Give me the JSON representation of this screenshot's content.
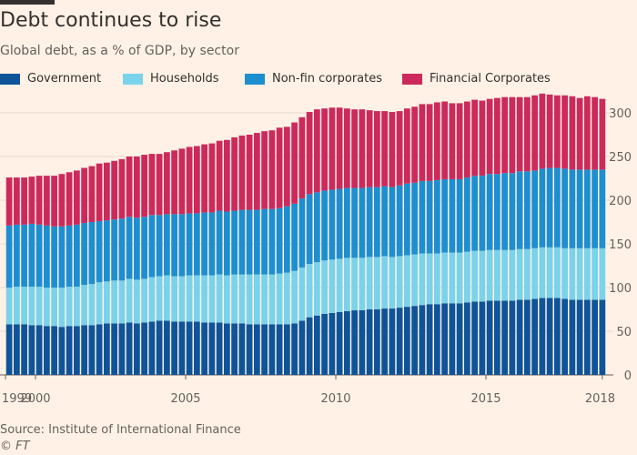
{
  "header": {
    "title": "Debt continues to rise",
    "subtitle": "Global debt, as a % of GDP, by sector"
  },
  "legend": [
    {
      "label": "Government",
      "color": "#0f5499"
    },
    {
      "label": "Households",
      "color": "#7ad3ea"
    },
    {
      "label": "Non-fin corporates",
      "color": "#1d8fd0"
    },
    {
      "label": "Financial Corporates",
      "color": "#cc2a5c"
    }
  ],
  "footer": {
    "source": "Source: Institute of International Finance",
    "credit": "© FT"
  },
  "chart_data": {
    "type": "bar",
    "stacked": true,
    "title": "Debt continues to rise",
    "subtitle": "Global debt, as a % of GDP, by sector",
    "ylim": [
      0,
      325
    ],
    "yticks": [
      0,
      50,
      100,
      150,
      200,
      250,
      300
    ],
    "x_tick_labels": [
      "1999",
      "2000",
      "2005",
      "2010",
      "2015",
      "2018"
    ],
    "grid": true,
    "legend_position": "top",
    "categories": [
      "1999 Q1",
      "1999 Q2",
      "1999 Q3",
      "1999 Q4",
      "2000 Q1",
      "2000 Q2",
      "2000 Q3",
      "2000 Q4",
      "2001 Q1",
      "2001 Q2",
      "2001 Q3",
      "2001 Q4",
      "2002 Q1",
      "2002 Q2",
      "2002 Q3",
      "2002 Q4",
      "2003 Q1",
      "2003 Q2",
      "2003 Q3",
      "2003 Q4",
      "2004 Q1",
      "2004 Q2",
      "2004 Q3",
      "2004 Q4",
      "2005 Q1",
      "2005 Q2",
      "2005 Q3",
      "2005 Q4",
      "2006 Q1",
      "2006 Q2",
      "2006 Q3",
      "2006 Q4",
      "2007 Q1",
      "2007 Q2",
      "2007 Q3",
      "2007 Q4",
      "2008 Q1",
      "2008 Q2",
      "2008 Q3",
      "2008 Q4",
      "2009 Q1",
      "2009 Q2",
      "2009 Q3",
      "2009 Q4",
      "2010 Q1",
      "2010 Q2",
      "2010 Q3",
      "2010 Q4",
      "2011 Q1",
      "2011 Q2",
      "2011 Q3",
      "2011 Q4",
      "2012 Q1",
      "2012 Q2",
      "2012 Q3",
      "2012 Q4",
      "2013 Q1",
      "2013 Q2",
      "2013 Q3",
      "2013 Q4",
      "2014 Q1",
      "2014 Q2",
      "2014 Q3",
      "2014 Q4",
      "2015 Q1",
      "2015 Q2",
      "2015 Q3",
      "2015 Q4",
      "2016 Q1",
      "2016 Q2",
      "2016 Q3",
      "2016 Q4",
      "2017 Q1",
      "2017 Q2",
      "2017 Q3",
      "2017 Q4",
      "2018 Q1",
      "2018 Q2",
      "2018 Q3",
      "2018 Q4"
    ],
    "series": [
      {
        "name": "Government",
        "color": "#0f5499",
        "values": [
          58,
          58,
          58,
          57,
          57,
          56,
          56,
          55,
          56,
          56,
          57,
          57,
          58,
          59,
          59,
          59,
          60,
          59,
          60,
          61,
          62,
          62,
          61,
          61,
          61,
          61,
          60,
          60,
          60,
          59,
          59,
          59,
          58,
          58,
          58,
          58,
          58,
          58,
          59,
          62,
          66,
          68,
          70,
          71,
          72,
          73,
          74,
          74,
          75,
          75,
          76,
          76,
          77,
          78,
          79,
          80,
          81,
          81,
          82,
          82,
          82,
          83,
          84,
          84,
          85,
          85,
          85,
          85,
          86,
          86,
          87,
          88,
          88,
          88,
          87,
          86,
          86,
          86,
          86,
          86
        ]
      },
      {
        "name": "Households",
        "color": "#7ad3ea",
        "values": [
          42,
          43,
          43,
          44,
          44,
          44,
          44,
          45,
          45,
          45,
          46,
          47,
          48,
          48,
          49,
          49,
          50,
          50,
          50,
          51,
          51,
          52,
          52,
          52,
          53,
          53,
          54,
          54,
          55,
          55,
          56,
          56,
          57,
          57,
          57,
          57,
          58,
          59,
          60,
          61,
          61,
          61,
          61,
          61,
          61,
          61,
          60,
          60,
          60,
          60,
          60,
          59,
          59,
          59,
          59,
          59,
          58,
          58,
          58,
          58,
          58,
          58,
          58,
          58,
          58,
          58,
          58,
          58,
          58,
          58,
          58,
          58,
          58,
          58,
          58,
          59,
          59,
          59,
          59,
          59
        ]
      },
      {
        "name": "Non-fin corporates",
        "color": "#1d8fd0",
        "values": [
          71,
          71,
          71,
          72,
          71,
          71,
          70,
          70,
          70,
          71,
          71,
          71,
          70,
          70,
          70,
          71,
          71,
          71,
          71,
          71,
          70,
          70,
          71,
          71,
          71,
          71,
          72,
          72,
          73,
          73,
          73,
          74,
          74,
          74,
          75,
          75,
          75,
          76,
          77,
          79,
          80,
          80,
          80,
          80,
          80,
          80,
          80,
          80,
          80,
          80,
          80,
          80,
          81,
          82,
          82,
          83,
          83,
          84,
          84,
          84,
          84,
          85,
          86,
          86,
          87,
          87,
          88,
          88,
          89,
          89,
          89,
          90,
          91,
          91,
          91,
          90,
          90,
          90,
          90,
          90
        ]
      },
      {
        "name": "Financial Corporates",
        "color": "#cc2a5c",
        "values": [
          55,
          54,
          54,
          54,
          56,
          57,
          58,
          60,
          61,
          62,
          63,
          64,
          66,
          66,
          67,
          68,
          69,
          70,
          71,
          70,
          70,
          71,
          73,
          75,
          76,
          77,
          78,
          79,
          80,
          82,
          84,
          85,
          86,
          88,
          89,
          90,
          92,
          91,
          93,
          93,
          94,
          95,
          94,
          94,
          93,
          91,
          90,
          90,
          88,
          87,
          86,
          86,
          85,
          86,
          87,
          88,
          88,
          89,
          89,
          87,
          87,
          87,
          87,
          86,
          86,
          87,
          87,
          87,
          85,
          85,
          86,
          86,
          84,
          83,
          84,
          84,
          82,
          84,
          83,
          81
        ]
      }
    ]
  }
}
